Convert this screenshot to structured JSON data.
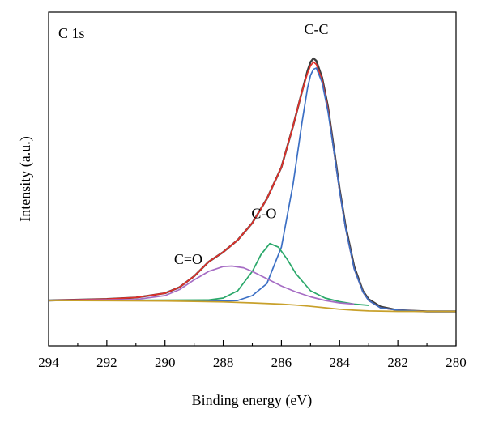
{
  "chart_data": {
    "type": "line",
    "title": "",
    "panel_label": "C 1s",
    "xlabel": "Binding energy (eV)",
    "ylabel": "Intensity (a.u.)",
    "xlim": [
      294,
      280
    ],
    "x_reversed": true,
    "ylim": [
      -0.2,
      1.05
    ],
    "x_ticks": [
      294,
      292,
      290,
      288,
      286,
      284,
      282,
      280
    ],
    "y_tick_labels_shown": false,
    "grid": false,
    "legend": "none",
    "annotations": [
      {
        "text": "C-C",
        "x": 284.8,
        "y": 1.1
      },
      {
        "text": "C-O",
        "x": 286.6,
        "y": 0.34
      },
      {
        "text": "C=O",
        "x": 289.2,
        "y": 0.15
      }
    ],
    "series": [
      {
        "role": "experimental",
        "color": "#3d3d3d",
        "x": [
          294,
          293,
          292,
          291,
          290,
          289.5,
          289,
          288.5,
          288,
          287.5,
          287,
          286.5,
          286,
          285.6,
          285.3,
          285.1,
          285.0,
          284.9,
          284.8,
          284.6,
          284.4,
          284.2,
          284.0,
          283.8,
          283.5,
          283.2,
          283.0,
          282.6,
          282.0,
          281,
          280
        ],
        "y": [
          0.0,
          0.003,
          0.006,
          0.012,
          0.03,
          0.055,
          0.1,
          0.16,
          0.2,
          0.25,
          0.32,
          0.42,
          0.55,
          0.72,
          0.86,
          0.95,
          0.985,
          1.0,
          0.99,
          0.92,
          0.8,
          0.63,
          0.46,
          0.31,
          0.14,
          0.04,
          0.005,
          -0.025,
          -0.04,
          -0.045,
          -0.045
        ]
      },
      {
        "role": "envelope",
        "color": "#e2302a",
        "x": [
          294,
          293,
          292,
          291,
          290,
          289.5,
          289,
          288.5,
          288,
          287.5,
          287,
          286.5,
          286,
          285.6,
          285.3,
          285.1,
          285.0,
          284.9,
          284.8,
          284.6,
          284.4,
          284.2,
          284.0,
          283.8,
          283.5,
          283.2,
          283.0,
          282.6,
          282.0,
          281,
          280
        ],
        "y": [
          0.0,
          0.003,
          0.006,
          0.012,
          0.03,
          0.055,
          0.1,
          0.16,
          0.2,
          0.25,
          0.32,
          0.42,
          0.55,
          0.72,
          0.86,
          0.94,
          0.97,
          0.985,
          0.975,
          0.91,
          0.79,
          0.62,
          0.45,
          0.3,
          0.13,
          0.035,
          0.0,
          -0.03,
          -0.04,
          -0.045,
          -0.045
        ]
      },
      {
        "role": "component",
        "label": "C-C",
        "color": "#3b6fc4",
        "x": [
          294,
          290,
          288,
          287.5,
          287,
          286.5,
          286,
          285.6,
          285.3,
          285.1,
          285.0,
          284.9,
          284.8,
          284.6,
          284.4,
          284.2,
          284.0,
          283.8,
          283.5,
          283.2,
          283.0,
          282.6,
          282.0,
          281,
          280
        ],
        "y": [
          0.0,
          0.0,
          -0.003,
          0.0,
          0.02,
          0.07,
          0.22,
          0.48,
          0.73,
          0.88,
          0.93,
          0.955,
          0.96,
          0.9,
          0.78,
          0.62,
          0.45,
          0.3,
          0.13,
          0.035,
          0.0,
          -0.03,
          -0.04,
          -0.045,
          -0.045
        ]
      },
      {
        "role": "component",
        "label": "C-O",
        "color": "#2aa86a",
        "x": [
          294,
          288.5,
          288,
          287.5,
          287,
          286.7,
          286.4,
          286.1,
          285.8,
          285.5,
          285.0,
          284.5,
          284.0,
          283.5,
          283.0
        ],
        "y": [
          0.0,
          0.002,
          0.01,
          0.04,
          0.12,
          0.19,
          0.235,
          0.22,
          0.17,
          0.11,
          0.04,
          0.01,
          -0.005,
          -0.015,
          -0.02
        ]
      },
      {
        "role": "component",
        "label": "C=O",
        "color": "#a66dc4",
        "x": [
          294,
          291,
          290,
          289.5,
          289,
          288.5,
          288,
          287.7,
          287.3,
          287,
          286.5,
          286,
          285.5,
          285,
          284.5,
          284,
          283.5
        ],
        "y": [
          0.0,
          0.004,
          0.02,
          0.045,
          0.085,
          0.12,
          0.14,
          0.142,
          0.135,
          0.12,
          0.09,
          0.06,
          0.035,
          0.015,
          0.0,
          -0.01,
          -0.015
        ]
      },
      {
        "role": "background",
        "color": "#c8a02a",
        "x": [
          294,
          292,
          290,
          289,
          288,
          287,
          286,
          285.5,
          285,
          284.5,
          284,
          283.5,
          283,
          282,
          281,
          280
        ],
        "y": [
          0.0,
          -0.001,
          -0.002,
          -0.004,
          -0.006,
          -0.01,
          -0.015,
          -0.019,
          -0.024,
          -0.03,
          -0.036,
          -0.04,
          -0.043,
          -0.045,
          -0.045,
          -0.045
        ]
      }
    ]
  }
}
